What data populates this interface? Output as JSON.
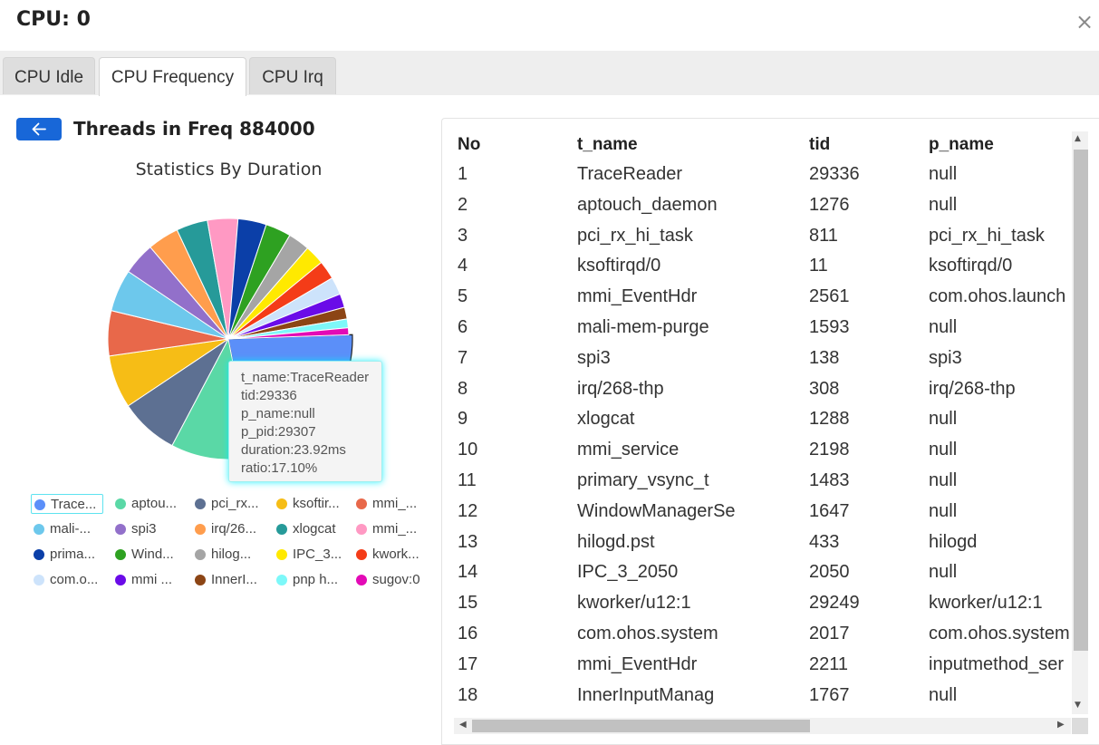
{
  "window": {
    "title": "CPU: 0",
    "close_glyph": "×"
  },
  "tabs": [
    {
      "label": "CPU Idle",
      "active": false
    },
    {
      "label": "CPU Frequency",
      "active": true
    },
    {
      "label": "CPU Irq",
      "active": false
    }
  ],
  "panel": {
    "heading": "Threads in Freq 884000",
    "back_icon": "arrow-left-icon",
    "chart_title": "Statistics By Duration"
  },
  "tooltip": {
    "t_name": "t_name:TraceReader",
    "tid": "tid:29336",
    "p_name": "p_name:null",
    "p_pid": "p_pid:29307",
    "duration": "duration:23.92ms",
    "ratio": "ratio:17.10%"
  },
  "legend": [
    {
      "label": "Trace...",
      "color": "#5b8ff9"
    },
    {
      "label": "aptou...",
      "color": "#5ad8a6"
    },
    {
      "label": "pci_rx...",
      "color": "#5d7092"
    },
    {
      "label": "ksoftir...",
      "color": "#f6bd16"
    },
    {
      "label": "mmi_...",
      "color": "#e8684a"
    },
    {
      "label": "mali-...",
      "color": "#6dc8ec"
    },
    {
      "label": "spi3",
      "color": "#9270ca"
    },
    {
      "label": "irq/26...",
      "color": "#ff9d4d"
    },
    {
      "label": "xlogcat",
      "color": "#269a99"
    },
    {
      "label": "mmi_...",
      "color": "#ff99c3"
    },
    {
      "label": "prima...",
      "color": "#0b3fa8"
    },
    {
      "label": "Wind...",
      "color": "#2ea121"
    },
    {
      "label": "hilog...",
      "color": "#a5a5a5"
    },
    {
      "label": "IPC_3...",
      "color": "#ffe900"
    },
    {
      "label": "kwork...",
      "color": "#f43c18"
    },
    {
      "label": "com.o...",
      "color": "#cde3fb"
    },
    {
      "label": "mmi ...",
      "color": "#6a0be8"
    },
    {
      "label": "InnerI...",
      "color": "#8c4515"
    },
    {
      "label": "pnp h...",
      "color": "#7df8f9"
    },
    {
      "label": "sugov:0",
      "color": "#e30ab6"
    }
  ],
  "chart_data": {
    "type": "pie",
    "title": "Statistics By Duration",
    "labels": [
      "TraceReader",
      "aptouch_daemon",
      "pci_rx_hi_task",
      "ksoftirqd/0",
      "mmi_EventHdr",
      "mali-mem-purge",
      "spi3",
      "irq/268-thp",
      "xlogcat",
      "mmi_service",
      "primary_vsync_t",
      "WindowManagerSe",
      "hilogd.pst",
      "IPC_3_2050",
      "kworker/u12:1",
      "com.ohos.system",
      "mmi_EventHdr",
      "InnerInputManag",
      "pnp h...",
      "sugov:0"
    ],
    "values": [
      17.1,
      8.2,
      6.0,
      5.4,
      4.6,
      4.3,
      3.3,
      3.2,
      3.2,
      3.1,
      2.9,
      2.6,
      2.2,
      2.0,
      1.9,
      1.8,
      1.4,
      1.2,
      0.9,
      0.7
    ],
    "highlighted": "TraceReader"
  },
  "table": {
    "columns": [
      "No",
      "t_name",
      "tid",
      "p_name"
    ],
    "rows": [
      [
        "1",
        "TraceReader",
        "29336",
        "null"
      ],
      [
        "2",
        "aptouch_daemon",
        "1276",
        "null"
      ],
      [
        "3",
        "pci_rx_hi_task",
        "811",
        "pci_rx_hi_task"
      ],
      [
        "4",
        "ksoftirqd/0",
        "11",
        "ksoftirqd/0"
      ],
      [
        "5",
        "mmi_EventHdr",
        "2561",
        "com.ohos.launch"
      ],
      [
        "6",
        "mali-mem-purge",
        "1593",
        "null"
      ],
      [
        "7",
        "spi3",
        "138",
        "spi3"
      ],
      [
        "8",
        "irq/268-thp",
        "308",
        "irq/268-thp"
      ],
      [
        "9",
        "xlogcat",
        "1288",
        "null"
      ],
      [
        "10",
        "mmi_service",
        "2198",
        "null"
      ],
      [
        "11",
        "primary_vsync_t",
        "1483",
        "null"
      ],
      [
        "12",
        "WindowManagerSe",
        "1647",
        "null"
      ],
      [
        "13",
        "hilogd.pst",
        "433",
        "hilogd"
      ],
      [
        "14",
        "IPC_3_2050",
        "2050",
        "null"
      ],
      [
        "15",
        "kworker/u12:1",
        "29249",
        "kworker/u12:1"
      ],
      [
        "16",
        "com.ohos.system",
        "2017",
        "com.ohos.system"
      ],
      [
        "17",
        "mmi_EventHdr",
        "2211",
        "inputmethod_ser"
      ],
      [
        "18",
        "InnerInputManag",
        "1767",
        "null"
      ]
    ]
  }
}
